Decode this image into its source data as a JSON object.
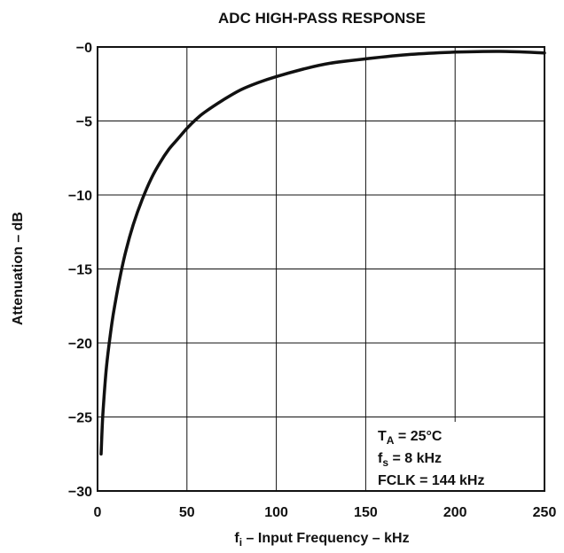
{
  "chart_data": {
    "type": "line",
    "title": "ADC HIGH-PASS RESPONSE",
    "ylabel": "Attenuation – dB",
    "xlabel": {
      "prefix": "f",
      "subscript": "i",
      "rest": " – Input Frequency – kHz"
    },
    "xlim": [
      0,
      250
    ],
    "ylim": [
      -30,
      0
    ],
    "x_ticks": [
      0,
      50,
      100,
      150,
      200,
      250
    ],
    "x_tick_labels": [
      "0",
      "50",
      "100",
      "150",
      "200",
      "250"
    ],
    "y_ticks": [
      0,
      -5,
      -10,
      -15,
      -20,
      -25,
      -30
    ],
    "y_tick_labels": [
      "−0",
      "−5",
      "−10",
      "−15",
      "−20",
      "−25",
      "−30"
    ],
    "grid": true,
    "series": [
      {
        "x": [
          2,
          3,
          5,
          8,
          10,
          13,
          16,
          20,
          25,
          30,
          35,
          40,
          45,
          50,
          55,
          60,
          70,
          80,
          90,
          100,
          115,
          130,
          150,
          175,
          200,
          225,
          250
        ],
        "y": [
          -27.5,
          -24.8,
          -21.6,
          -18.7,
          -17.2,
          -15.3,
          -13.7,
          -12.0,
          -10.3,
          -8.9,
          -7.8,
          -6.9,
          -6.2,
          -5.5,
          -4.9,
          -4.4,
          -3.6,
          -2.9,
          -2.4,
          -2.0,
          -1.5,
          -1.1,
          -0.8,
          -0.5,
          -0.35,
          -0.3,
          -0.4
        ]
      }
    ],
    "annotation": {
      "lines": [
        {
          "main": "T",
          "sub": "A",
          "rest": " = 25°C"
        },
        {
          "main": "f",
          "sub": "s",
          "rest": " = 8 kHz"
        },
        {
          "main": "FCLK = 144 kHz",
          "sub": "",
          "rest": ""
        }
      ]
    }
  }
}
